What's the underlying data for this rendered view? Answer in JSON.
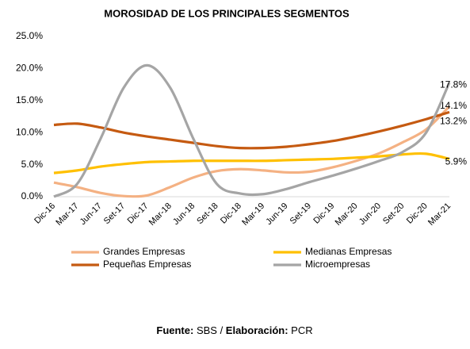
{
  "chart_data": {
    "type": "line",
    "title": "MOROSIDAD DE LOS PRINCIPALES SEGMENTOS",
    "categories": [
      "Dic-16",
      "Mar-17",
      "Jun-17",
      "Set-17",
      "Dic-17",
      "Mar-18",
      "Jun-18",
      "Set-18",
      "Dic-18",
      "Mar-19",
      "Jun-19",
      "Set-19",
      "Dic-19",
      "Mar-20",
      "Jun-20",
      "Set-20",
      "Dic-20",
      "Mar-21"
    ],
    "series": [
      {
        "name": "Grandes Empresas",
        "color": "#f4b183",
        "values": [
          2.2,
          1.5,
          0.6,
          0.1,
          0.2,
          1.5,
          3.0,
          4.0,
          4.3,
          4.1,
          3.8,
          3.9,
          4.6,
          5.6,
          6.8,
          8.5,
          10.5,
          14.1
        ],
        "value_labels": [
          null,
          null,
          null,
          null,
          null,
          null,
          null,
          null,
          null,
          null,
          null,
          null,
          null,
          null,
          null,
          null,
          null,
          "14.1%"
        ]
      },
      {
        "name": "Medianas Empresas",
        "color": "#ffc000",
        "values": [
          3.7,
          4.1,
          4.7,
          5.1,
          5.4,
          5.5,
          5.6,
          5.6,
          5.6,
          5.6,
          5.7,
          5.8,
          5.9,
          6.1,
          6.3,
          6.6,
          6.7,
          5.9
        ],
        "value_labels": [
          null,
          null,
          null,
          null,
          null,
          null,
          null,
          null,
          null,
          null,
          null,
          null,
          null,
          null,
          null,
          null,
          null,
          "5.9%"
        ]
      },
      {
        "name": "Pequeñas Empresas",
        "color": "#c55a11",
        "values": [
          11.2,
          11.4,
          10.8,
          10.0,
          9.4,
          8.9,
          8.4,
          7.9,
          7.6,
          7.6,
          7.8,
          8.2,
          8.7,
          9.4,
          10.2,
          11.1,
          12.1,
          13.2
        ],
        "value_labels": [
          null,
          null,
          null,
          null,
          null,
          null,
          null,
          null,
          null,
          null,
          null,
          null,
          null,
          null,
          null,
          null,
          null,
          "13.2%"
        ]
      },
      {
        "name": "Microempresas",
        "color": "#a5a5a5",
        "values": [
          0.0,
          2.0,
          9.0,
          17.0,
          20.5,
          17.0,
          9.0,
          2.0,
          0.5,
          0.4,
          1.2,
          2.3,
          3.3,
          4.4,
          5.6,
          7.0,
          10.0,
          17.8
        ],
        "value_labels": [
          null,
          null,
          null,
          null,
          null,
          null,
          null,
          null,
          null,
          null,
          null,
          null,
          null,
          null,
          null,
          null,
          null,
          "17.8%"
        ]
      }
    ],
    "ylim": [
      0,
      25
    ],
    "yticks": [
      {
        "value": 0,
        "label": "0.0%"
      },
      {
        "value": 5,
        "label": "5.0%"
      },
      {
        "value": 10,
        "label": "10.0%"
      },
      {
        "value": 15,
        "label": "15.0%"
      },
      {
        "value": 20,
        "label": "20.0%"
      },
      {
        "value": 25,
        "label": "25.0%"
      }
    ],
    "legend": "bottom",
    "source": [
      "Fuente:",
      " SBS / ",
      "Elaboración:",
      " PCR"
    ]
  }
}
